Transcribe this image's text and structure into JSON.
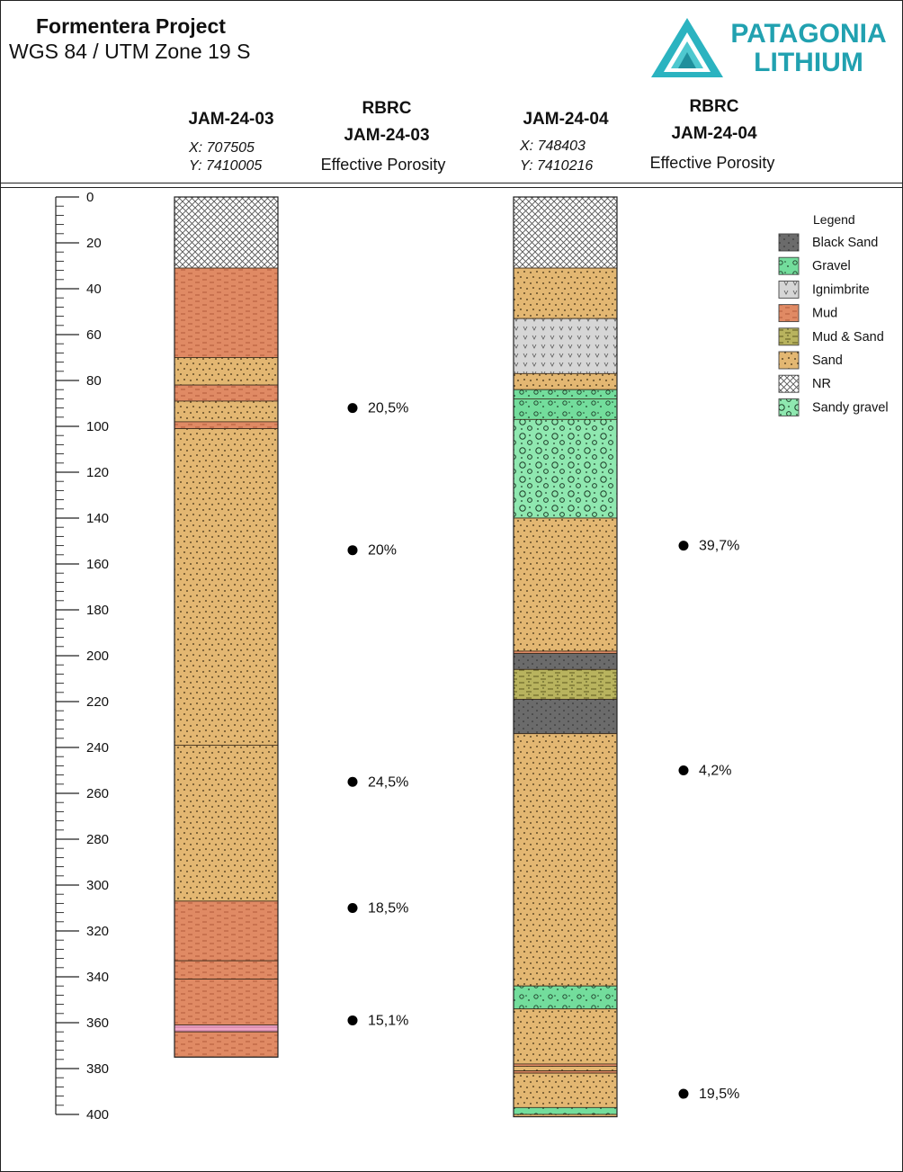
{
  "header": {
    "project_title": "Formentera Project",
    "crs": "WGS 84 / UTM Zone 19 S",
    "logo_line1": "PATAGONIA",
    "logo_line2": "LITHIUM",
    "logo_color": "#21a1b0"
  },
  "wells": [
    {
      "name": "JAM-24-03",
      "x": "X: 707505",
      "y": "Y: 7410005",
      "rbrc_title": "RBRC",
      "rbrc_well": "JAM-24-03",
      "rbrc_sub": "Effective Porosity"
    },
    {
      "name": "JAM-24-04",
      "x": "X: 748403",
      "y": "Y: 7410216",
      "rbrc_title": "RBRC",
      "rbrc_well": "JAM-24-04",
      "rbrc_sub": "Effective Porosity"
    }
  ],
  "legend": {
    "title": "Legend",
    "items": [
      {
        "key": "black_sand",
        "label": "Black Sand"
      },
      {
        "key": "gravel",
        "label": "Gravel"
      },
      {
        "key": "ignimbrite",
        "label": "Ignimbrite"
      },
      {
        "key": "mud",
        "label": "Mud"
      },
      {
        "key": "mud_sand",
        "label": "Mud & Sand"
      },
      {
        "key": "sand",
        "label": "Sand"
      },
      {
        "key": "nr",
        "label": "NR"
      },
      {
        "key": "sandy_gravel",
        "label": "Sandy gravel"
      }
    ]
  },
  "colors": {
    "black_sand": "#6b6b6b",
    "gravel": "#73dd9c",
    "ignimbrite": "#d6d6d6",
    "mud": "#e08a64",
    "mud_sand": "#b8b35e",
    "sand": "#e3b772",
    "nr": "#ffffff",
    "sandy_gravel": "#8fe8b0",
    "pink_layer": "#efa6c6"
  },
  "chart_data": {
    "type": "table",
    "depth_axis": {
      "min": 0,
      "max": 400,
      "major_step": 20,
      "minor_step": 4,
      "tick_labels": [
        "0",
        "20",
        "40",
        "60",
        "80",
        "100",
        "120",
        "140",
        "160",
        "180",
        "200",
        "220",
        "240",
        "260",
        "280",
        "300",
        "320",
        "340",
        "360",
        "380",
        "400"
      ]
    },
    "logs": [
      {
        "well": "JAM-24-03",
        "total_depth": 375,
        "intervals": [
          {
            "from": 0,
            "to": 31,
            "lith": "nr"
          },
          {
            "from": 31,
            "to": 70,
            "lith": "mud"
          },
          {
            "from": 70,
            "to": 82,
            "lith": "sand"
          },
          {
            "from": 82,
            "to": 89,
            "lith": "mud"
          },
          {
            "from": 89,
            "to": 98,
            "lith": "sand"
          },
          {
            "from": 98,
            "to": 101,
            "lith": "mud"
          },
          {
            "from": 101,
            "to": 239,
            "lith": "sand"
          },
          {
            "from": 239,
            "to": 307,
            "lith": "sand"
          },
          {
            "from": 307,
            "to": 333,
            "lith": "mud"
          },
          {
            "from": 333,
            "to": 341,
            "lith": "mud"
          },
          {
            "from": 341,
            "to": 361,
            "lith": "mud"
          },
          {
            "from": 361,
            "to": 364,
            "lith": "pink_layer"
          },
          {
            "from": 364,
            "to": 375,
            "lith": "mud"
          }
        ],
        "porosity": [
          {
            "depth": 92,
            "label": "20,5%"
          },
          {
            "depth": 154,
            "label": "20%"
          },
          {
            "depth": 255,
            "label": "24,5%"
          },
          {
            "depth": 310,
            "label": "18,5%"
          },
          {
            "depth": 359,
            "label": "15,1%"
          }
        ]
      },
      {
        "well": "JAM-24-04",
        "total_depth": 401,
        "intervals": [
          {
            "from": 0,
            "to": 31,
            "lith": "nr"
          },
          {
            "from": 31,
            "to": 53,
            "lith": "sand"
          },
          {
            "from": 53,
            "to": 77,
            "lith": "ignimbrite"
          },
          {
            "from": 77,
            "to": 84,
            "lith": "sand"
          },
          {
            "from": 84,
            "to": 88,
            "lith": "gravel"
          },
          {
            "from": 88,
            "to": 97,
            "lith": "gravel"
          },
          {
            "from": 97,
            "to": 140,
            "lith": "sandy_gravel"
          },
          {
            "from": 140,
            "to": 198,
            "lith": "sand"
          },
          {
            "from": 198,
            "to": 199,
            "lith": "mud"
          },
          {
            "from": 199,
            "to": 206,
            "lith": "black_sand"
          },
          {
            "from": 206,
            "to": 219,
            "lith": "mud_sand"
          },
          {
            "from": 219,
            "to": 234,
            "lith": "black_sand"
          },
          {
            "from": 234,
            "to": 344,
            "lith": "sand"
          },
          {
            "from": 344,
            "to": 354,
            "lith": "gravel"
          },
          {
            "from": 354,
            "to": 378,
            "lith": "sand"
          },
          {
            "from": 378,
            "to": 379,
            "lith": "mud"
          },
          {
            "from": 379,
            "to": 381,
            "lith": "sand"
          },
          {
            "from": 381,
            "to": 382,
            "lith": "mud"
          },
          {
            "from": 382,
            "to": 397,
            "lith": "sand"
          },
          {
            "from": 397,
            "to": 400,
            "lith": "gravel"
          },
          {
            "from": 400,
            "to": 401,
            "lith": "sand"
          }
        ],
        "porosity": [
          {
            "depth": 152,
            "label": "39,7%"
          },
          {
            "depth": 250,
            "label": "4,2%"
          },
          {
            "depth": 391,
            "label": "19,5%"
          }
        ]
      }
    ]
  }
}
